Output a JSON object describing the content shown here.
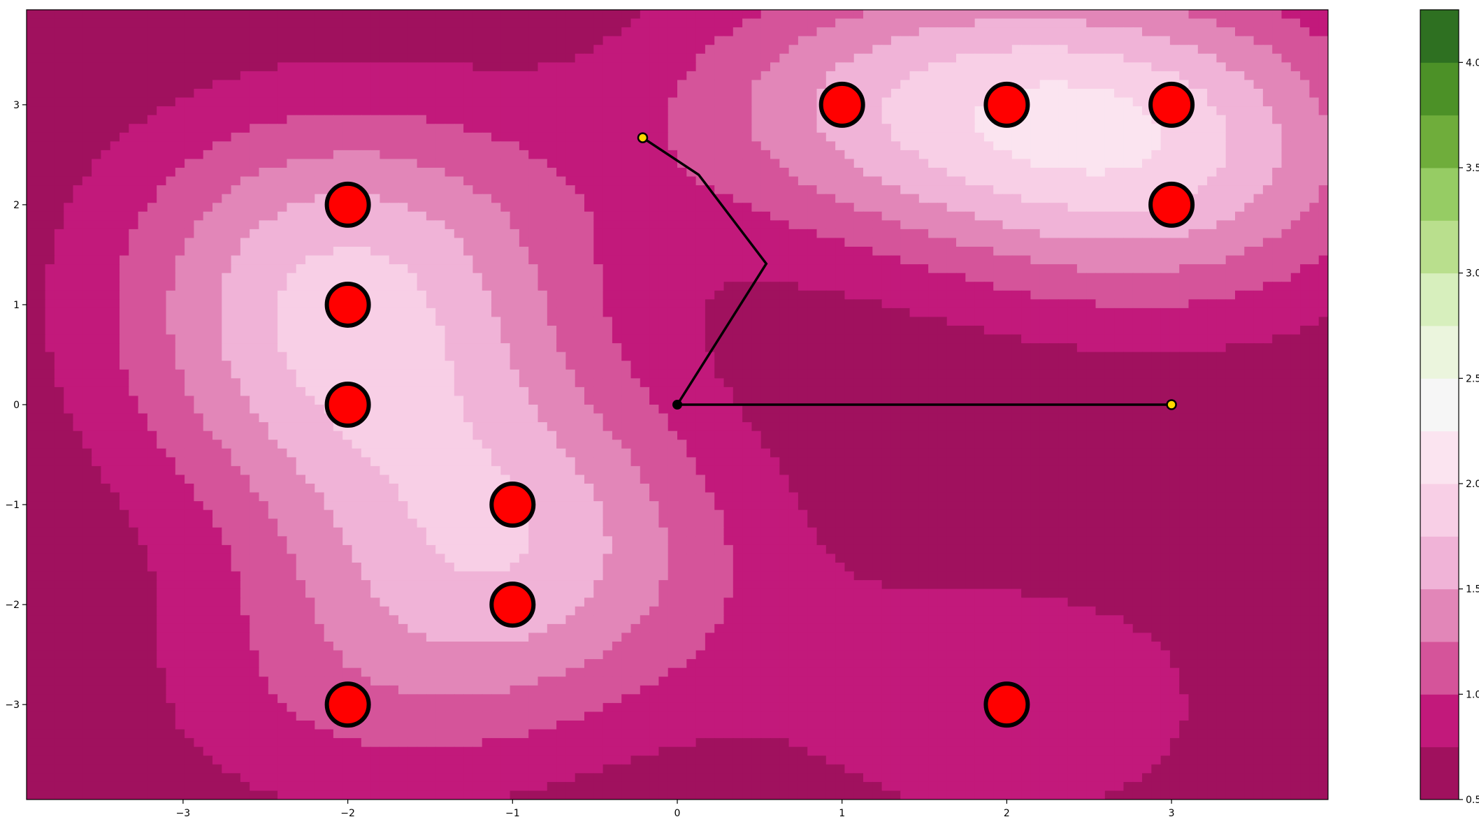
{
  "chart_data": {
    "type": "contour",
    "title": "",
    "xlabel": "",
    "ylabel": "",
    "xlim": [
      -3.95,
      3.95
    ],
    "ylim": [
      -3.95,
      3.95
    ],
    "x_ticks": [
      -3,
      -2,
      -1,
      0,
      1,
      2,
      3
    ],
    "x_tick_labels": [
      "−3",
      "−2",
      "−1",
      "0",
      "1",
      "2",
      "3"
    ],
    "y_ticks": [
      -3,
      -2,
      -1,
      0,
      1,
      2,
      3
    ],
    "y_tick_labels": [
      "−3",
      "−2",
      "−1",
      "0",
      "1",
      "2",
      "3"
    ],
    "grid": false,
    "colormap": "PiYG",
    "contour_levels": [
      0.5,
      0.75,
      1.0,
      1.25,
      1.5,
      1.75,
      2.0,
      2.25,
      2.5,
      2.75,
      3.0,
      3.25,
      3.5,
      3.75,
      4.0,
      4.25
    ],
    "level_colors": [
      "#a0115e",
      "#c2197b",
      "#d5549a",
      "#e286b8",
      "#f0b3d7",
      "#f8cfe6",
      "#fbe4f0",
      "#f6f6f6",
      "#ebf5dd",
      "#d7efbd",
      "#b9df8d",
      "#96cc64",
      "#6fad3b",
      "#4c9127",
      "#2e7021"
    ],
    "colorbar": {
      "ticks": [
        0.5,
        1.0,
        1.5,
        2.0,
        2.5,
        3.0,
        3.5,
        4.0
      ],
      "tick_labels": [
        "0.5",
        "1.0",
        "1.5",
        "2.0",
        "2.5",
        "3.0",
        "3.5",
        "4.0"
      ]
    },
    "markers": {
      "name": "targets",
      "color": "#ff0000",
      "edge_color": "#000000",
      "points": [
        {
          "x": -2,
          "y": 2
        },
        {
          "x": -2,
          "y": 1
        },
        {
          "x": -2,
          "y": 0
        },
        {
          "x": -2,
          "y": -3
        },
        {
          "x": -1,
          "y": -1
        },
        {
          "x": -1,
          "y": -2
        },
        {
          "x": 1,
          "y": 3
        },
        {
          "x": 2,
          "y": 3
        },
        {
          "x": 3,
          "y": 3
        },
        {
          "x": 3,
          "y": 2
        },
        {
          "x": 2,
          "y": -3
        }
      ]
    },
    "paths": [
      {
        "color": "#000000",
        "points": [
          {
            "x": 0,
            "y": 0
          },
          {
            "x": 3,
            "y": 0
          }
        ]
      },
      {
        "color": "#000000",
        "points": [
          {
            "x": 0,
            "y": 0
          },
          {
            "x": 0.54,
            "y": 1.41
          },
          {
            "x": 0.13,
            "y": 2.3
          },
          {
            "x": -0.21,
            "y": 2.67
          }
        ]
      }
    ],
    "origin": {
      "x": 0,
      "y": 0,
      "color": "#000000"
    },
    "endpoints": {
      "color": "#ffd700",
      "points": [
        {
          "x": 3,
          "y": 0
        },
        {
          "x": -0.21,
          "y": 2.67
        }
      ]
    },
    "gaussians": [
      {
        "x": -2,
        "y": 2,
        "a": 0.6
      },
      {
        "x": -2,
        "y": 1,
        "a": 0.6
      },
      {
        "x": -2,
        "y": 0,
        "a": 0.6
      },
      {
        "x": -2,
        "y": -3,
        "a": 0.35
      },
      {
        "x": -1,
        "y": -1,
        "a": 0.6
      },
      {
        "x": -1,
        "y": -2,
        "a": 0.6
      },
      {
        "x": 1,
        "y": 3,
        "a": 0.6
      },
      {
        "x": 2,
        "y": 3,
        "a": 0.6
      },
      {
        "x": 3,
        "y": 3,
        "a": 0.6
      },
      {
        "x": 3,
        "y": 2,
        "a": 0.6
      },
      {
        "x": 2,
        "y": -3,
        "a": 0.45
      }
    ]
  }
}
